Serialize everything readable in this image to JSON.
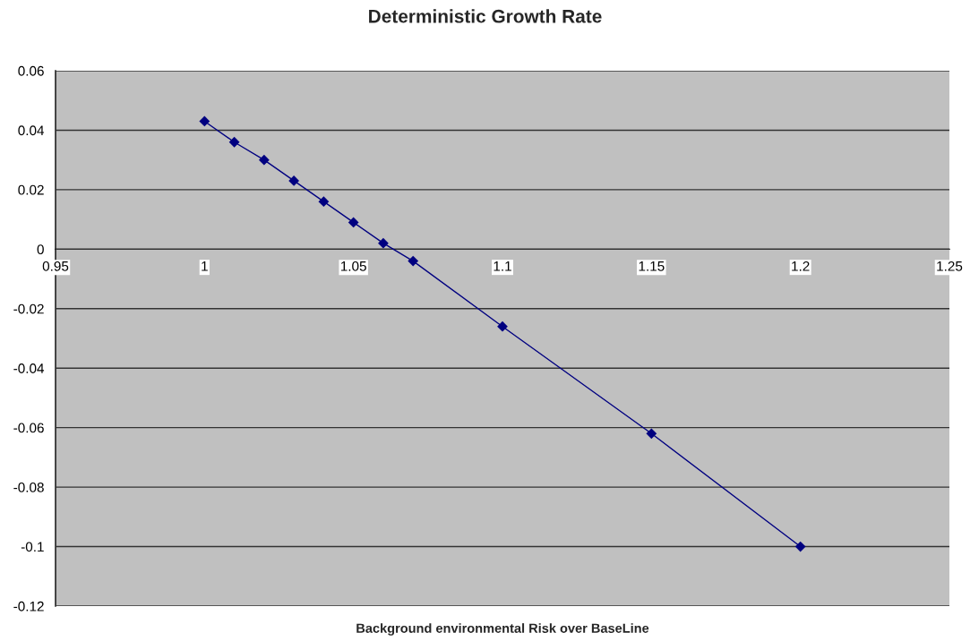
{
  "chart_data": {
    "type": "line",
    "title": "Deterministic Growth Rate",
    "xlabel": "Background environmental Risk over BaseLine",
    "x": [
      1,
      1.01,
      1.02,
      1.03,
      1.04,
      1.05,
      1.06,
      1.07,
      1.1,
      1.15,
      1.2
    ],
    "series": [
      {
        "color": "#000080",
        "values": [
          0.043,
          0.036,
          0.03,
          0.023,
          0.016,
          0.009,
          0.002,
          -0.004,
          -0.026,
          -0.062,
          -0.1
        ]
      }
    ],
    "xlim": [
      0.95,
      1.25
    ],
    "xticks": [
      0.95,
      1,
      1.05,
      1.1,
      1.15,
      1.2,
      1.25
    ],
    "ylim": [
      -0.12,
      0.06
    ],
    "yticks": [
      -0.12,
      -0.1,
      -0.08,
      -0.06,
      -0.04,
      -0.02,
      0,
      0.02,
      0.04,
      0.06
    ],
    "grid": "y",
    "marker": "diamond",
    "line_style": "solid"
  }
}
